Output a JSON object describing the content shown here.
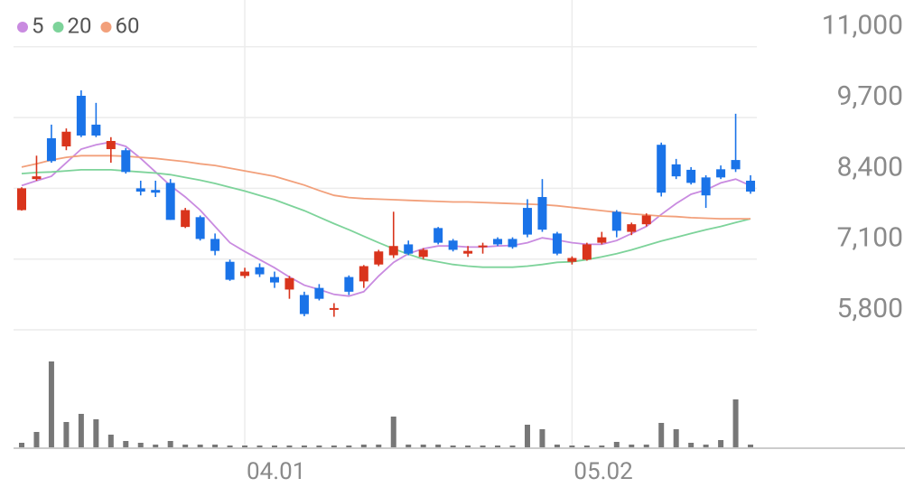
{
  "chart_data": {
    "type": "candlestick",
    "categories": [
      null,
      null,
      null,
      null,
      null,
      null,
      null,
      null,
      null,
      null,
      null,
      null,
      null,
      null,
      null,
      "04.01",
      null,
      null,
      null,
      null,
      null,
      null,
      null,
      null,
      null,
      null,
      null,
      null,
      null,
      null,
      null,
      null,
      null,
      null,
      null,
      null,
      null,
      "05.02",
      null,
      null,
      null,
      null,
      null,
      null,
      null,
      null,
      null,
      null,
      null,
      null
    ],
    "open": [
      8000,
      8570,
      9320,
      9170,
      10100,
      9570,
      9120,
      9100,
      8400,
      8370,
      8500,
      7690,
      7870,
      7470,
      7050,
      6790,
      6950,
      6770,
      6540,
      6440,
      6570,
      6170,
      6770,
      6690,
      7000,
      7170,
      7370,
      7140,
      7670,
      7440,
      7200,
      7320,
      7470,
      7470,
      8040,
      8240,
      7570,
      7050,
      7090,
      7400,
      7970,
      7600,
      7740,
      9200,
      8840,
      8740,
      8600,
      8750,
      8920,
      8540
    ],
    "high": [
      8420,
      9000,
      9570,
      9500,
      10200,
      9970,
      9340,
      9140,
      8540,
      8540,
      8570,
      8040,
      7900,
      7570,
      7090,
      6940,
      7020,
      6870,
      6790,
      6500,
      6640,
      6290,
      6800,
      6990,
      7270,
      7970,
      7440,
      7300,
      7690,
      7470,
      7340,
      7400,
      7500,
      7500,
      8200,
      8570,
      7600,
      7150,
      7400,
      7600,
      8000,
      7770,
      7940,
      9240,
      8940,
      8790,
      8640,
      8820,
      9770,
      8640
    ],
    "low": [
      7990,
      8540,
      8870,
      9100,
      9340,
      9340,
      8870,
      8670,
      8270,
      8240,
      7820,
      7670,
      7440,
      7170,
      6700,
      6750,
      6770,
      6570,
      6370,
      6050,
      6340,
      6040,
      6440,
      6570,
      6970,
      7120,
      7170,
      7100,
      7370,
      7240,
      7140,
      7200,
      7340,
      7290,
      7500,
      7600,
      7170,
      7000,
      7070,
      7370,
      7500,
      7540,
      7700,
      8250,
      8570,
      8470,
      8040,
      8570,
      8700,
      8300
    ],
    "close": [
      8400,
      8620,
      8900,
      9440,
      9370,
      9370,
      9270,
      8700,
      8340,
      8320,
      7820,
      8000,
      7470,
      7250,
      6720,
      6870,
      6820,
      6670,
      6750,
      6090,
      6370,
      6200,
      6500,
      6970,
      7240,
      7340,
      7200,
      7270,
      7400,
      7270,
      7250,
      7350,
      7370,
      7320,
      7550,
      7640,
      7200,
      7120,
      7370,
      7500,
      7620,
      7740,
      7900,
      8320,
      8620,
      8500,
      8270,
      8600,
      8750,
      8340
    ],
    "up_color": "#d9341c",
    "down_color": "#1a73e8",
    "series": [
      {
        "name": "5",
        "color": "#c98be0",
        "values": [
          8450,
          8540,
          8620,
          8870,
          9120,
          9200,
          9250,
          9170,
          8950,
          8700,
          8450,
          8240,
          8000,
          7700,
          7400,
          7240,
          7090,
          6940,
          6770,
          6620,
          6540,
          6450,
          6420,
          6500,
          6790,
          7040,
          7200,
          7290,
          7340,
          7340,
          7320,
          7320,
          7340,
          7350,
          7400,
          7490,
          7450,
          7400,
          7370,
          7370,
          7440,
          7570,
          7700,
          7920,
          8120,
          8290,
          8370,
          8500,
          8570,
          8450
        ]
      },
      {
        "name": "20",
        "color": "#7dd39a",
        "values": [
          8670,
          8690,
          8700,
          8720,
          8740,
          8740,
          8740,
          8720,
          8700,
          8680,
          8650,
          8600,
          8550,
          8490,
          8420,
          8350,
          8270,
          8190,
          8090,
          7990,
          7870,
          7750,
          7640,
          7520,
          7400,
          7290,
          7190,
          7100,
          7050,
          7000,
          6970,
          6950,
          6950,
          6950,
          6970,
          7000,
          7040,
          7050,
          7090,
          7140,
          7200,
          7270,
          7350,
          7430,
          7500,
          7570,
          7640,
          7700,
          7770,
          7840
        ]
      },
      {
        "name": "60",
        "color": "#f2a07b",
        "values": [
          8790,
          8850,
          8920,
          8970,
          9000,
          9000,
          9000,
          8990,
          8970,
          8950,
          8920,
          8890,
          8850,
          8820,
          8770,
          8720,
          8670,
          8620,
          8540,
          8460,
          8360,
          8270,
          8230,
          8210,
          8200,
          8190,
          8180,
          8170,
          8160,
          8150,
          8150,
          8140,
          8130,
          8120,
          8110,
          8100,
          8080,
          8050,
          8020,
          7990,
          7960,
          7930,
          7910,
          7890,
          7880,
          7860,
          7850,
          7840,
          7840,
          7840
        ]
      }
    ],
    "volume": {
      "color": "#777777",
      "values": [
        5,
        17,
        95,
        28,
        37,
        31,
        14,
        7,
        5,
        3,
        7,
        3,
        3,
        3,
        2,
        2,
        2,
        2,
        2,
        2,
        2,
        2,
        2,
        3,
        3,
        34,
        3,
        3,
        3,
        2,
        2,
        2,
        2,
        2,
        25,
        20,
        3,
        2,
        2,
        2,
        6,
        3,
        3,
        27,
        20,
        5,
        3,
        8,
        53,
        3
      ]
    },
    "ylim": [
      5800,
      11860
    ],
    "yticks": [
      {
        "value": 11000,
        "label": "11,000"
      },
      {
        "value": 9700,
        "label": "9,700"
      },
      {
        "value": 8400,
        "label": "8,400"
      },
      {
        "value": 7100,
        "label": "7,100"
      },
      {
        "value": 5800,
        "label": "5,800"
      }
    ],
    "grid": true
  }
}
